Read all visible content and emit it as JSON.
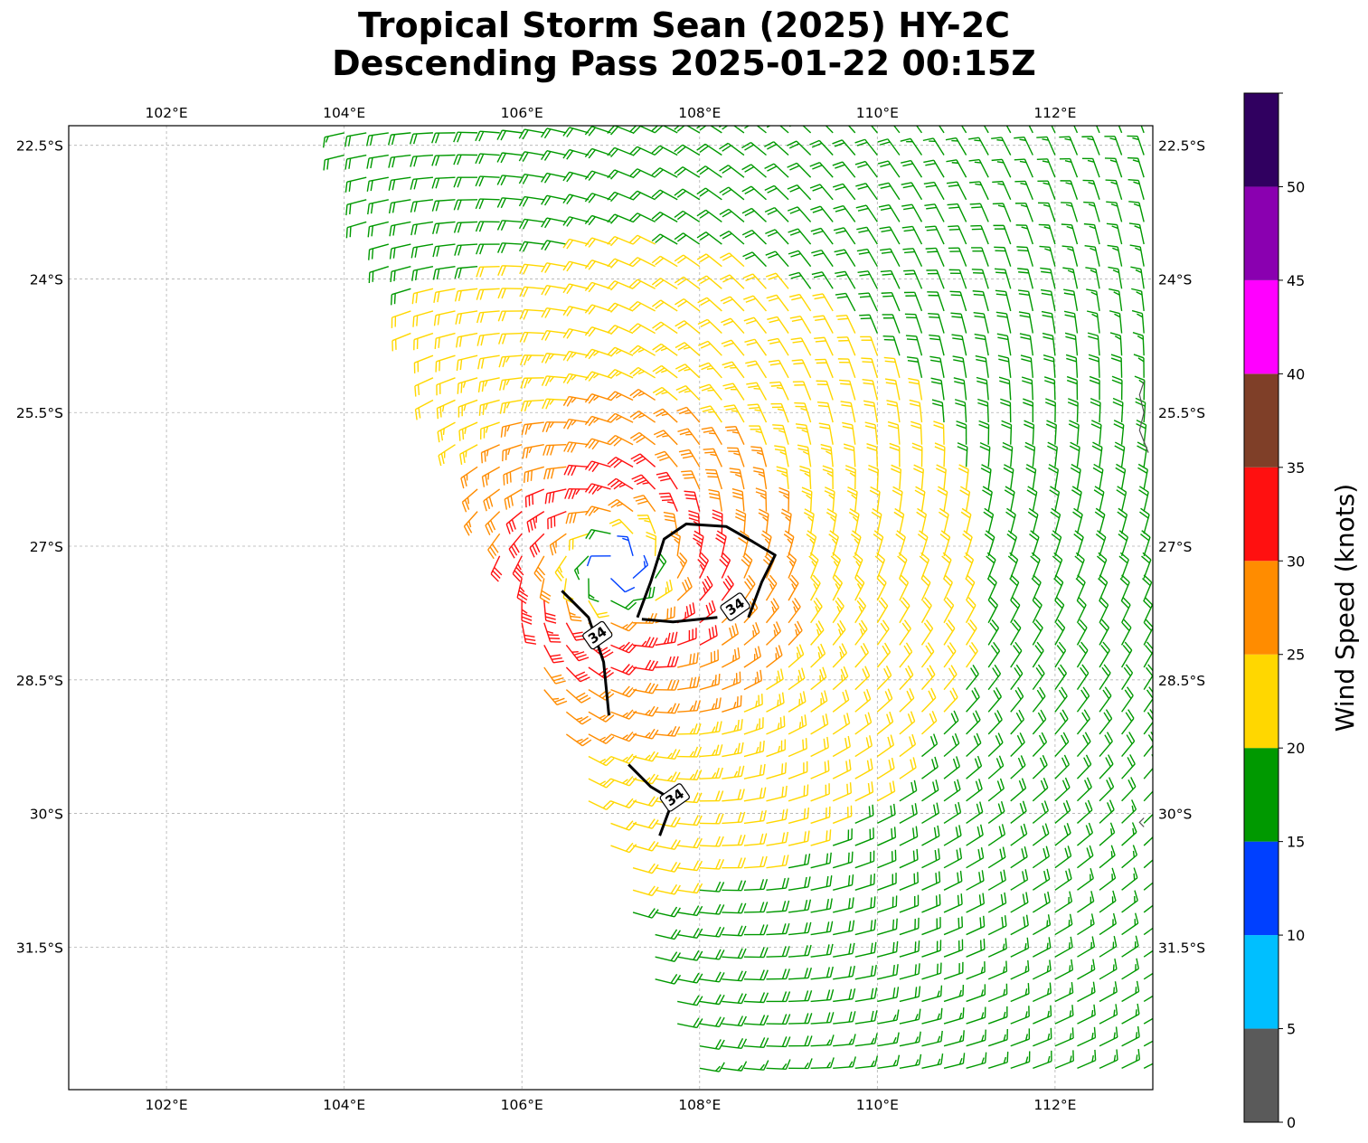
{
  "title": {
    "line1": "Tropical Storm Sean (2025) HY-2C",
    "line2": "Descending Pass 2025-01-22 00:15Z"
  },
  "map": {
    "lon_range": [
      100.9,
      113.1
    ],
    "lat_range": [
      -33.1,
      -22.28
    ],
    "lon_ticks": [
      {
        "value": 102,
        "label": "102°E"
      },
      {
        "value": 104,
        "label": "104°E"
      },
      {
        "value": 106,
        "label": "106°E"
      },
      {
        "value": 108,
        "label": "108°E"
      },
      {
        "value": 110,
        "label": "110°E"
      },
      {
        "value": 112,
        "label": "112°E"
      }
    ],
    "lat_ticks": [
      {
        "value": -22.5,
        "label": "22.5°S"
      },
      {
        "value": -24,
        "label": "24°S"
      },
      {
        "value": -25.5,
        "label": "25.5°S"
      },
      {
        "value": -27,
        "label": "27°S"
      },
      {
        "value": -28.5,
        "label": "28.5°S"
      },
      {
        "value": -30,
        "label": "30°S"
      },
      {
        "value": -31.5,
        "label": "31.5°S"
      }
    ],
    "gridlines": true,
    "swath_west_edge": [
      [
        103.85,
        -22.35
      ],
      [
        107.95,
        -33.1
      ]
    ],
    "storm_center": [
      107.05,
      -27.25
    ],
    "contour_label": "34",
    "contours_34kt": [
      [
        [
          107.3,
          -27.8
        ],
        [
          107.45,
          -27.4
        ],
        [
          107.6,
          -26.92
        ],
        [
          107.85,
          -26.75
        ],
        [
          108.3,
          -26.78
        ],
        [
          108.6,
          -26.95
        ],
        [
          108.85,
          -27.1
        ],
        [
          108.7,
          -27.4
        ],
        [
          108.55,
          -27.8
        ]
      ],
      [
        [
          107.35,
          -27.82
        ],
        [
          107.7,
          -27.85
        ],
        [
          108.0,
          -27.82
        ],
        [
          108.2,
          -27.8
        ]
      ],
      [
        [
          106.45,
          -27.5
        ],
        [
          106.75,
          -27.8
        ],
        [
          106.92,
          -28.3
        ],
        [
          106.98,
          -28.9
        ]
      ],
      [
        [
          107.2,
          -29.45
        ],
        [
          107.45,
          -29.7
        ],
        [
          107.7,
          -29.85
        ],
        [
          107.55,
          -30.25
        ]
      ]
    ],
    "contour_label_positions": [
      [
        108.4,
        -27.68
      ],
      [
        106.85,
        -28.0
      ],
      [
        107.72,
        -29.82
      ]
    ],
    "coastline_fragments": [
      [
        [
          113.0,
          -25.15
        ],
        [
          112.95,
          -25.3
        ],
        [
          113.0,
          -25.5
        ],
        [
          112.95,
          -25.7
        ],
        [
          113.05,
          -25.95
        ]
      ],
      [
        [
          113.0,
          -30.05
        ],
        [
          112.95,
          -30.1
        ],
        [
          113.0,
          -30.15
        ]
      ]
    ]
  },
  "colorbar": {
    "label": "Wind Speed (knots)",
    "ticks": [
      "0",
      "5",
      "10",
      "15",
      "20",
      "25",
      "30",
      "35",
      "40",
      "45",
      "50"
    ],
    "colors": [
      "#5a5a5a",
      "#00bfff",
      "#0040ff",
      "#009900",
      "#ffd700",
      "#ff8c00",
      "#ff1010",
      "#7f3f28",
      "#ff00ff",
      "#8a00b0",
      "#300060"
    ],
    "max": 55
  },
  "wind_field": {
    "units": "knots",
    "center": [
      107.05,
      -27.25
    ],
    "rmw_deg": 0.9,
    "vmax": 34,
    "decay_exponent": 0.55,
    "ambient": 8,
    "grid_spacing_deg": 0.25
  }
}
